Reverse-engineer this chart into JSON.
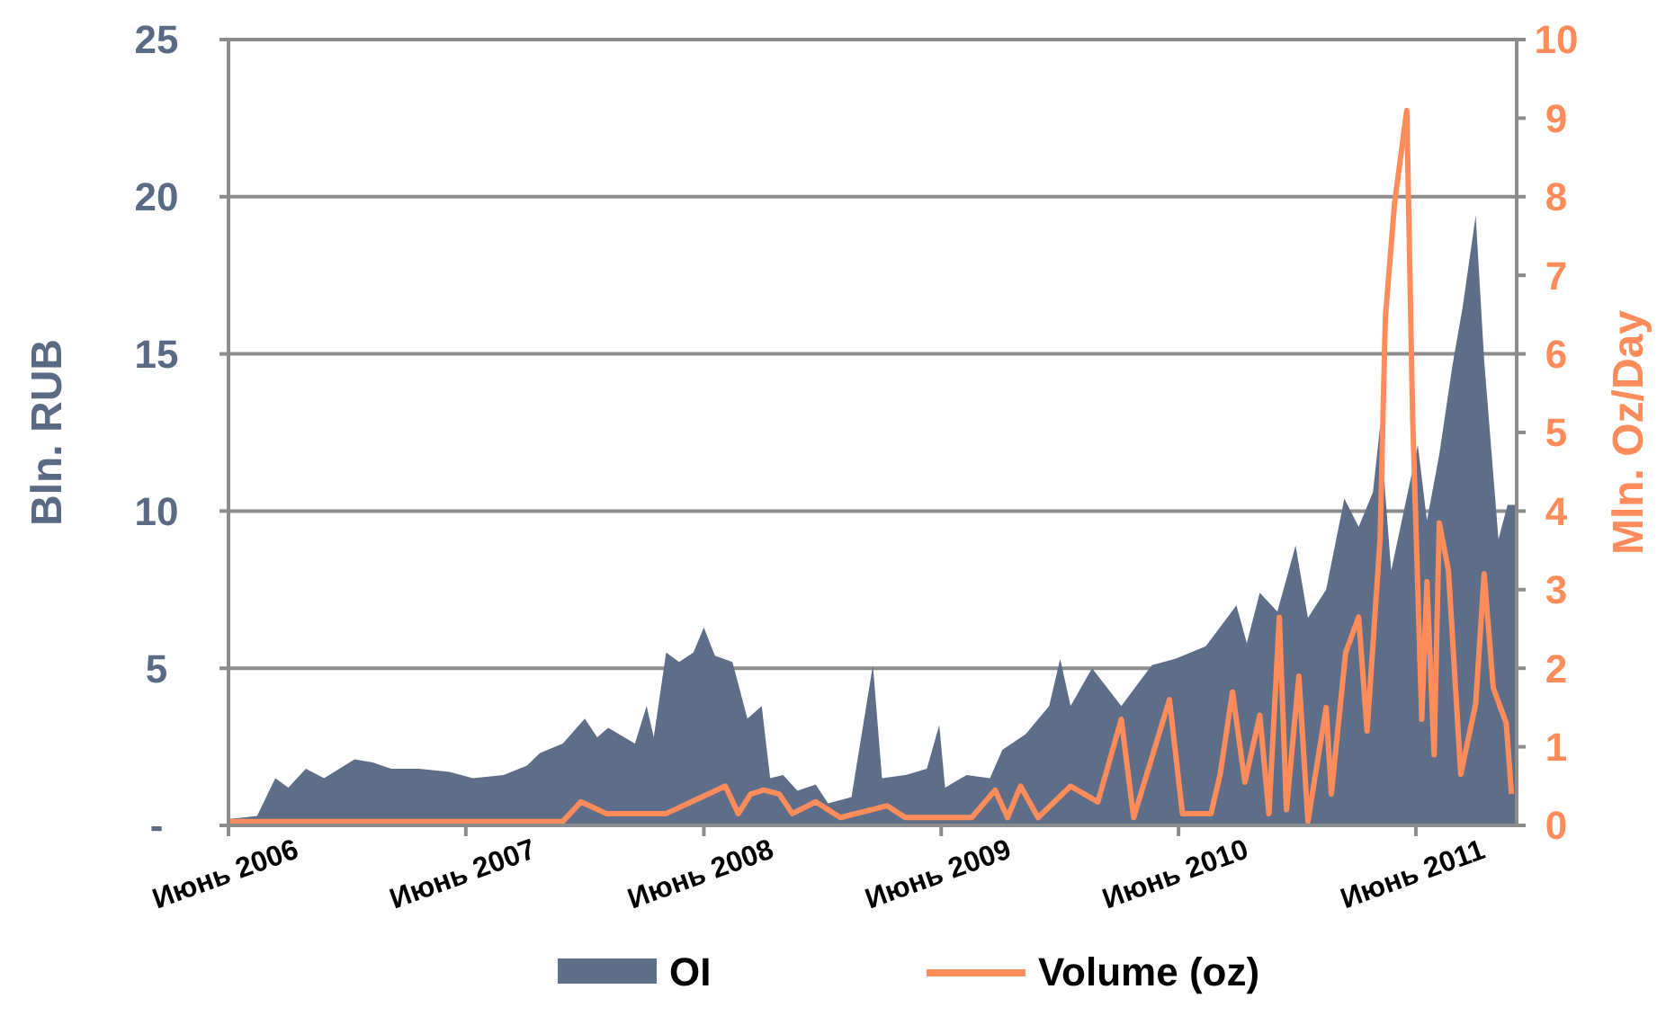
{
  "chart_data": {
    "type": "area",
    "ylabel": "Bln. RUB",
    "y2label": "Mln. Oz/Day",
    "xlim": [
      "2006-06-01",
      "2011-11-03"
    ],
    "xticks": [
      {
        "value": "2006-06-01",
        "label": "Июнь 2006"
      },
      {
        "value": "2007-06-01",
        "label": "Июнь 2007"
      },
      {
        "value": "2008-06-01",
        "label": "Июнь 2008"
      },
      {
        "value": "2009-06-01",
        "label": "Июнь 2009"
      },
      {
        "value": "2010-06-01",
        "label": "Июнь 2010"
      },
      {
        "value": "2011-06-01",
        "label": "Июнь 2011"
      }
    ],
    "ylim": [
      0,
      25
    ],
    "yticks": [
      {
        "value": 0,
        "label": "-"
      },
      5,
      10,
      15,
      20,
      25
    ],
    "y2lim": [
      0,
      10
    ],
    "y2ticks": [
      0,
      1,
      2,
      3,
      4,
      5,
      6,
      7,
      8,
      9,
      10
    ],
    "grid": "y",
    "legend": "bottom",
    "series": [
      {
        "name": "OI",
        "color": "#5f6e88",
        "x": [
          "2006-06-01",
          "2006-07-15",
          "2006-08-12",
          "2006-09-01",
          "2006-09-28",
          "2006-10-26",
          "2006-12-12",
          "2007-01-09",
          "2007-02-06",
          "2007-03-21",
          "2007-05-07",
          "2007-06-12",
          "2007-07-29",
          "2007-09-03",
          "2007-09-23",
          "2007-10-28",
          "2007-12-01",
          "2007-12-20",
          "2008-01-06",
          "2008-02-16",
          "2008-03-05",
          "2008-03-16",
          "2008-04-04",
          "2008-04-24",
          "2008-05-16",
          "2008-06-01",
          "2008-06-18",
          "2008-07-15",
          "2008-08-07",
          "2008-08-29",
          "2008-09-11",
          "2008-10-01",
          "2008-10-23",
          "2008-11-20",
          "2008-12-09",
          "2009-01-14",
          "2009-02-16",
          "2009-03-02",
          "2009-04-07",
          "2009-05-10",
          "2009-05-29",
          "2009-06-07",
          "2009-07-10",
          "2009-08-15",
          "2009-09-03",
          "2009-10-09",
          "2009-11-14",
          "2009-12-01",
          "2009-12-17",
          "2010-01-19",
          "2010-03-05",
          "2010-04-21",
          "2010-05-27",
          "2010-07-13",
          "2010-08-29",
          "2010-09-14",
          "2010-10-04",
          "2010-10-31",
          "2010-11-28",
          "2010-12-17",
          "2011-01-14",
          "2011-02-11",
          "2011-03-05",
          "2011-03-27",
          "2011-04-07",
          "2011-04-24",
          "2011-06-04",
          "2011-06-18",
          "2011-07-07",
          "2011-07-27",
          "2011-08-12",
          "2011-09-01",
          "2011-09-14",
          "2011-10-06",
          "2011-10-20",
          "2011-11-03"
        ],
        "values": [
          0.2,
          0.3,
          1.5,
          1.2,
          1.8,
          1.5,
          2.1,
          2.0,
          1.8,
          1.8,
          1.7,
          1.5,
          1.6,
          1.9,
          2.3,
          2.6,
          3.4,
          2.8,
          3.1,
          2.6,
          3.8,
          2.8,
          5.5,
          5.2,
          5.5,
          6.3,
          5.4,
          5.2,
          3.4,
          3.8,
          1.5,
          1.6,
          1.1,
          1.3,
          0.7,
          0.9,
          5.1,
          1.5,
          1.6,
          1.8,
          3.2,
          1.2,
          1.6,
          1.5,
          2.4,
          2.9,
          3.8,
          5.3,
          3.8,
          5.0,
          3.8,
          5.1,
          5.3,
          5.7,
          7.0,
          5.8,
          7.4,
          6.8,
          8.9,
          6.6,
          7.5,
          10.4,
          9.5,
          10.6,
          12.7,
          8.1,
          12.1,
          9.7,
          11.8,
          14.6,
          16.5,
          19.4,
          14.8,
          9.1,
          10.2,
          10.2
        ]
      },
      {
        "name": "Volume (oz)",
        "type": "line",
        "axis": "y2",
        "color": "#ff8c5a",
        "x": [
          "2006-06-01",
          "2007-10-28",
          "2007-11-25",
          "2008-01-03",
          "2008-04-04",
          "2008-07-04",
          "2008-07-24",
          "2008-08-12",
          "2008-09-01",
          "2008-09-25",
          "2008-10-15",
          "2008-11-20",
          "2008-12-28",
          "2009-03-10",
          "2009-04-07",
          "2009-07-18",
          "2009-08-23",
          "2009-09-11",
          "2009-10-01",
          "2009-10-28",
          "2009-12-17",
          "2010-01-28",
          "2010-03-05",
          "2010-03-24",
          "2010-05-18",
          "2010-06-07",
          "2010-07-21",
          "2010-08-04",
          "2010-08-23",
          "2010-09-11",
          "2010-10-04",
          "2010-10-18",
          "2010-11-03",
          "2010-11-14",
          "2010-12-03",
          "2010-12-17",
          "2011-01-14",
          "2011-01-22",
          "2011-02-13",
          "2011-03-05",
          "2011-03-18",
          "2011-04-07",
          "2011-04-15",
          "2011-04-29",
          "2011-05-18",
          "2011-05-27",
          "2011-06-10",
          "2011-06-18",
          "2011-06-29",
          "2011-07-07",
          "2011-07-21",
          "2011-08-09",
          "2011-09-01",
          "2011-09-14",
          "2011-09-28",
          "2011-10-18",
          "2011-10-26"
        ],
        "values": [
          0.05,
          0.05,
          0.3,
          0.15,
          0.15,
          0.5,
          0.15,
          0.4,
          0.45,
          0.4,
          0.15,
          0.3,
          0.1,
          0.25,
          0.1,
          0.1,
          0.45,
          0.1,
          0.5,
          0.1,
          0.5,
          0.3,
          1.35,
          0.1,
          1.6,
          0.15,
          0.15,
          0.65,
          1.7,
          0.55,
          1.4,
          0.15,
          2.65,
          0.2,
          1.9,
          0.05,
          1.5,
          0.4,
          2.2,
          2.65,
          1.2,
          3.65,
          6.45,
          7.9,
          9.1,
          5.2,
          1.35,
          3.1,
          0.9,
          3.85,
          3.25,
          0.65,
          1.55,
          3.2,
          1.75,
          1.3,
          0.4
        ]
      }
    ]
  }
}
